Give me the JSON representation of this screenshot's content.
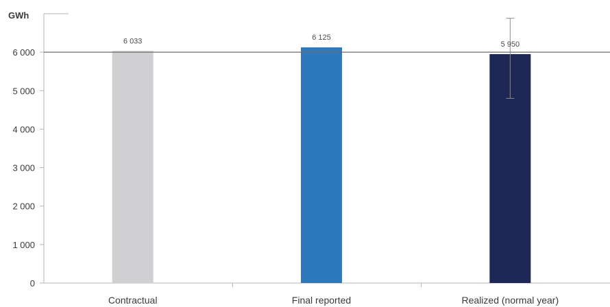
{
  "chart_data": {
    "type": "bar",
    "unit_label": "GWh",
    "categories": [
      "Contractual",
      "Final reported",
      "Realized (normal year)"
    ],
    "values": [
      6033,
      6125,
      5950
    ],
    "value_labels": [
      "6 033",
      "6 125",
      "5 950"
    ],
    "error_bars": [
      null,
      null,
      {
        "low": 4800,
        "high": 6880
      }
    ],
    "colors": [
      "#d0d0d2",
      "#2e79bd",
      "#1e2756"
    ],
    "reference_line": 6000,
    "ylim": [
      0,
      7000
    ],
    "yticks": [
      0,
      1000,
      2000,
      3000,
      4000,
      5000,
      6000
    ],
    "ytick_labels": [
      "0",
      "1 000",
      "2 000",
      "3 000",
      "4 000",
      "5 000",
      "6 000"
    ],
    "grid": false,
    "legend": "none"
  }
}
